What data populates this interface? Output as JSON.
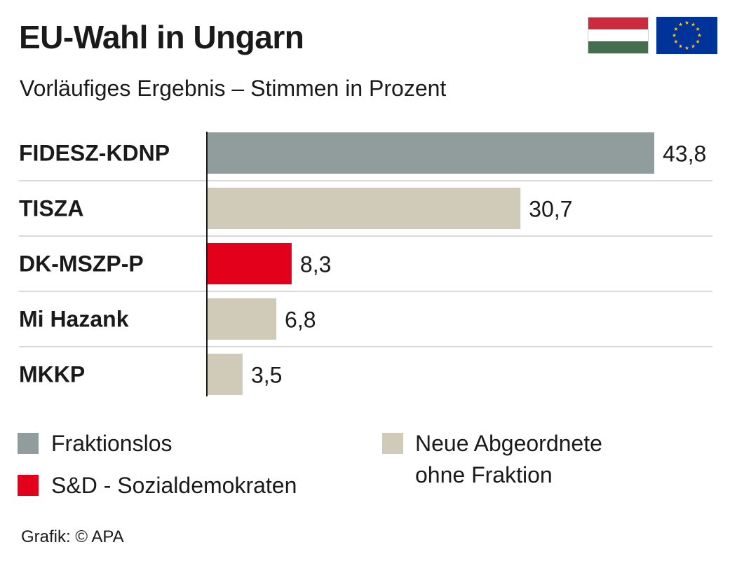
{
  "header": {
    "title": "EU-Wahl in Ungarn",
    "subtitle": "Vorläufiges Ergebnis – Stimmen in Prozent"
  },
  "flags": [
    {
      "icon": "hungary-flag-icon",
      "colors": [
        "#cd2a3e",
        "#ffffff",
        "#436f4d"
      ]
    },
    {
      "icon": "eu-flag-icon",
      "colors": [
        "#003399",
        "#ffcc00"
      ]
    }
  ],
  "chart_data": {
    "type": "bar",
    "orientation": "horizontal",
    "categories": [
      "FIDESZ-KDNP",
      "TISZA",
      "DK-MSZP-P",
      "Mi Hazank",
      "MKKP"
    ],
    "values": [
      43.8,
      30.7,
      8.3,
      6.8,
      3.5
    ],
    "value_labels": [
      "43,8",
      "30,7",
      "8,3",
      "6,8",
      "3,5"
    ],
    "bar_groups": [
      "Fraktionslos",
      "Neue Abgeordnete ohne Fraktion",
      "S&D - Sozialdemokraten",
      "Neue Abgeordnete ohne Fraktion",
      "Neue Abgeordnete ohne Fraktion"
    ],
    "xlim": [
      0,
      43.8
    ],
    "grid": true
  },
  "legend": [
    {
      "label": "Fraktionslos",
      "color": "#919c9c"
    },
    {
      "label": "S&D - Sozialdemokraten",
      "color": "#e2001a"
    },
    {
      "label_line1": "Neue Abgeordnete",
      "label_line2": "ohne Fraktion",
      "color": "#d0cbb8"
    }
  ],
  "source": "Grafik: © APA"
}
